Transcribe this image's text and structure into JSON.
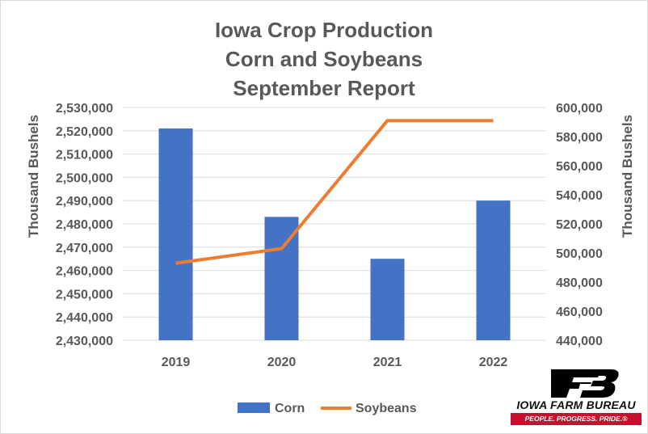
{
  "chart_data": {
    "type": "bar",
    "title": [
      "Iowa Crop Production",
      "Corn and Soybeans",
      "September Report"
    ],
    "categories": [
      "2019",
      "2020",
      "2021",
      "2022"
    ],
    "series": [
      {
        "name": "Corn",
        "kind": "bar",
        "axis": "left",
        "color": "#4472c4",
        "values": [
          2521000,
          2483000,
          2465000,
          2490000
        ]
      },
      {
        "name": "Soybeans",
        "kind": "line",
        "axis": "right",
        "color": "#ed7d31",
        "values": [
          493000,
          503000,
          591000,
          591000
        ]
      }
    ],
    "y_left": {
      "label": "Thousand Bushels",
      "min": 2430000,
      "max": 2530000,
      "step": 10000,
      "ticks": [
        "2,430,000",
        "2,440,000",
        "2,450,000",
        "2,460,000",
        "2,470,000",
        "2,480,000",
        "2,490,000",
        "2,500,000",
        "2,510,000",
        "2,520,000",
        "2,530,000"
      ]
    },
    "y_right": {
      "label": "Thousand Bushels",
      "min": 440000,
      "max": 600000,
      "step": 20000,
      "ticks": [
        "440,000",
        "460,000",
        "480,000",
        "500,000",
        "520,000",
        "540,000",
        "560,000",
        "580,000",
        "600,000"
      ]
    },
    "grid": true,
    "legend_position": "bottom"
  },
  "logo": {
    "name": "IOWA FARM BUREAU",
    "tagline": "PEOPLE. PROGRESS. PRIDE.®",
    "colors": {
      "mark": "#000000",
      "band": "#c8102e"
    }
  }
}
